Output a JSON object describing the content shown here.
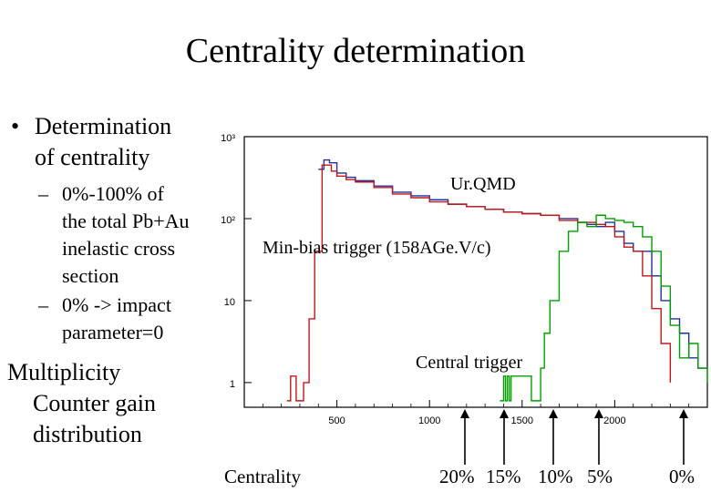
{
  "slide": {
    "title": "Centrality determination",
    "bullet1": {
      "line1": "Determination",
      "line2": "of centrality"
    },
    "sub1": {
      "lines": [
        "0%-100% of",
        "the total Pb+Au",
        "inelastic cross",
        "section"
      ]
    },
    "sub2": {
      "lines": [
        "0% -> impact",
        "parameter=0"
      ]
    },
    "lower": {
      "lines": [
        "Multiplicity",
        "Counter gain",
        "distribution"
      ]
    }
  },
  "annotations": {
    "urqmd": "Ur.QMD",
    "minbias": "Min-bias trigger (158AGe.V/c)",
    "central": "Central trigger",
    "centrality_label": "Centrality",
    "percent_marks": [
      "20%",
      "15%",
      "10%",
      "5%",
      "0%"
    ]
  },
  "colors": {
    "urqmd": "#2030a0",
    "minbias": "#c01818",
    "central": "#00a000",
    "magenta": "#aa1077"
  },
  "chart_data": {
    "type": "line",
    "xlim": [
      0,
      2500
    ],
    "ylim": [
      0.5,
      1000
    ],
    "yscale": "log",
    "x_ticks": [
      500,
      1000,
      1500,
      2000
    ],
    "y_ticks": [
      {
        "value": 1000,
        "label": "10³"
      },
      {
        "value": 100,
        "label": "10²"
      },
      {
        "value": 10,
        "label": "10"
      },
      {
        "value": 1,
        "label": "1"
      }
    ],
    "series": [
      {
        "name": "Ur.QMD",
        "x": [
          400,
          430,
          460,
          500,
          550,
          600,
          700,
          800,
          900,
          1000,
          1100,
          1200,
          1300,
          1400,
          1500,
          1600,
          1700,
          1800,
          1850,
          1900,
          1950,
          2000,
          2050,
          2100,
          2150,
          2200,
          2250,
          2300,
          2350,
          2400,
          2450,
          2500
        ],
        "y": [
          400,
          520,
          480,
          360,
          320,
          290,
          250,
          210,
          190,
          170,
          150,
          140,
          130,
          120,
          115,
          110,
          100,
          90,
          85,
          80,
          90,
          70,
          50,
          40,
          40,
          20,
          10,
          6,
          4,
          2,
          1.5,
          1.5
        ]
      },
      {
        "name": "Min-bias trigger (158AGe.V/c)",
        "x": [
          230,
          250,
          250,
          280,
          320,
          350,
          380,
          420,
          470,
          500,
          550,
          600,
          700,
          800,
          900,
          1000,
          1100,
          1200,
          1300,
          1400,
          1500,
          1600,
          1700,
          1800,
          1900,
          1950,
          2000,
          2050,
          2100,
          2150,
          2200,
          2250,
          2300
        ],
        "y": [
          0.6,
          0.6,
          1.2,
          0.6,
          1.0,
          6,
          40,
          450,
          380,
          330,
          300,
          280,
          240,
          200,
          180,
          160,
          150,
          140,
          130,
          120,
          115,
          110,
          95,
          90,
          85,
          80,
          60,
          45,
          40,
          20,
          8,
          3,
          1
        ]
      },
      {
        "name": "Central trigger",
        "x": [
          1380,
          1400,
          1410,
          1420,
          1430,
          1440,
          1550,
          1600,
          1620,
          1650,
          1700,
          1750,
          1800,
          1850,
          1900,
          1950,
          2000,
          2050,
          2100,
          2150,
          2200,
          2250,
          2300,
          2350,
          2400,
          2450,
          2500
        ],
        "y": [
          0.6,
          1.2,
          0.6,
          1.2,
          0.6,
          1.2,
          0.6,
          1.5,
          4,
          10,
          40,
          70,
          90,
          80,
          110,
          100,
          95,
          90,
          80,
          60,
          40,
          15,
          5,
          2,
          3,
          1.5,
          1
        ]
      }
    ]
  }
}
